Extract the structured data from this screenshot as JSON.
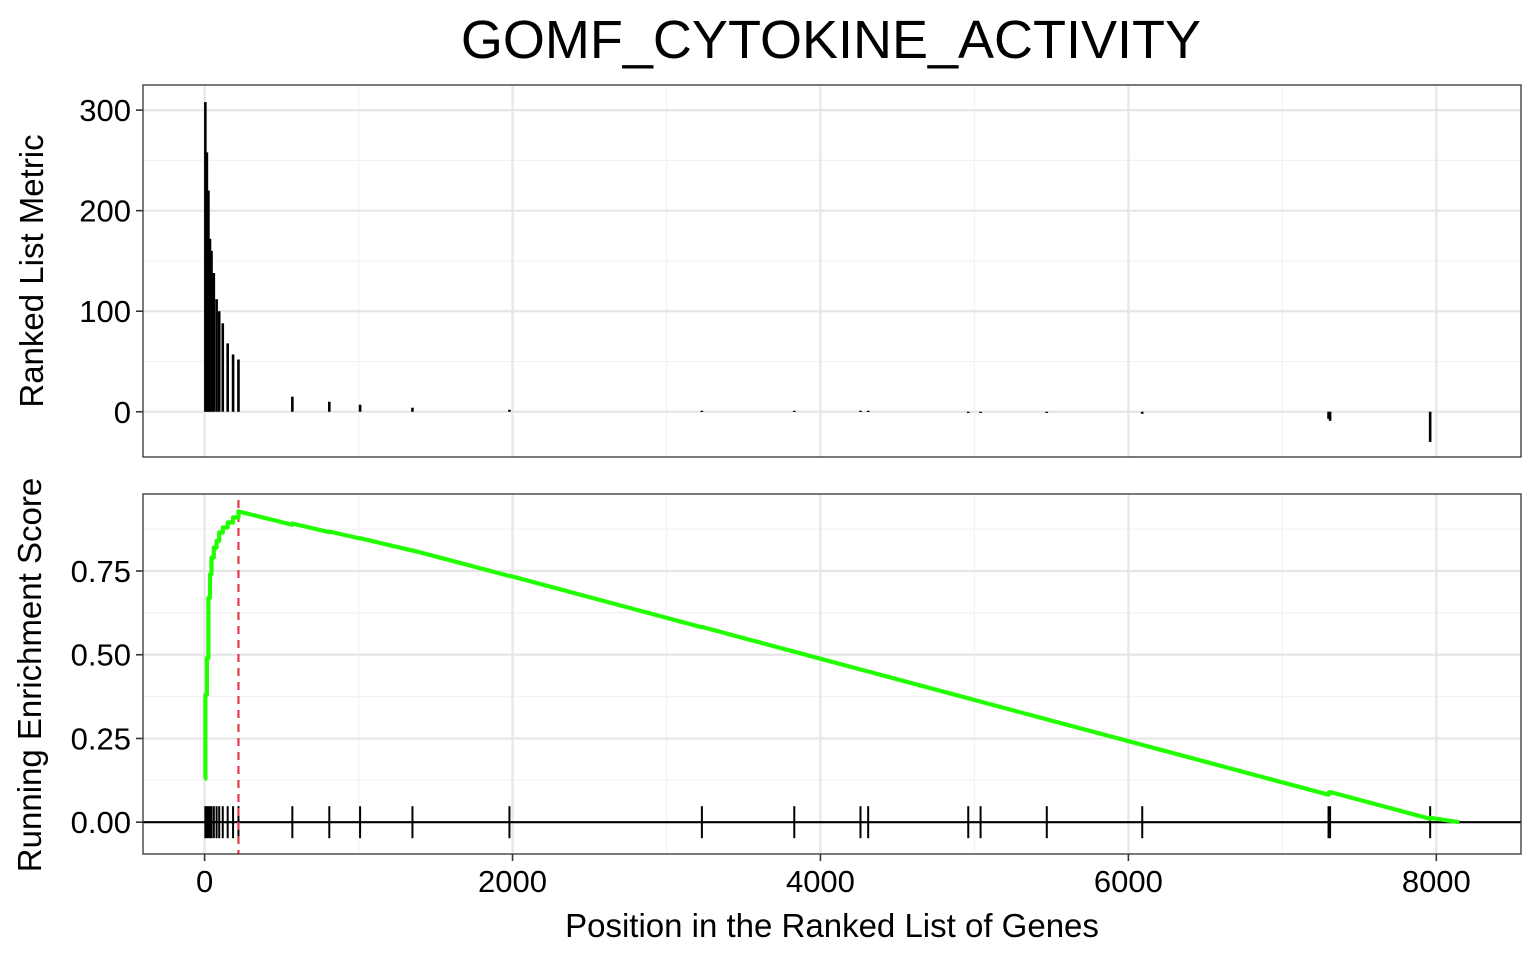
{
  "chart_data": {
    "type": "line",
    "title": "GOMF_CYTOKINE_ACTIVITY",
    "xlabel": "Position in the Ranked List of Genes",
    "xlim": [
      -400,
      8550
    ],
    "x_ticks": [
      0,
      2000,
      4000,
      6000,
      8000
    ],
    "x_tick_labels": [
      "0",
      "2000",
      "4000",
      "6000",
      "8000"
    ],
    "panels": [
      {
        "name": "ranked-metric",
        "type": "bar",
        "ylabel": "Ranked List Metric",
        "ylim": [
          -45,
          325
        ],
        "y_ticks": [
          0,
          100,
          200,
          300
        ],
        "y_tick_labels": [
          "0",
          "100",
          "200",
          "300"
        ],
        "x": [
          5,
          15,
          25,
          35,
          45,
          60,
          78,
          95,
          118,
          150,
          185,
          220,
          570,
          810,
          1010,
          1350,
          1980,
          3230,
          3830,
          4260,
          4310,
          4960,
          5040,
          5470,
          6090,
          7300,
          7310,
          7960
        ],
        "values": [
          308,
          258,
          220,
          172,
          160,
          138,
          112,
          100,
          88,
          68,
          57,
          52,
          15,
          10,
          7,
          4,
          2,
          1,
          1,
          1,
          1,
          -1,
          -1,
          -1,
          -2,
          -7,
          -9,
          -30
        ]
      },
      {
        "name": "running-enrichment-score",
        "type": "line",
        "ylabel": "Running Enrichment Score",
        "ylim": [
          -0.095,
          0.98
        ],
        "y_ticks": [
          0.0,
          0.25,
          0.5,
          0.75
        ],
        "y_tick_labels": [
          "0.00",
          "0.25",
          "0.50",
          "0.75"
        ],
        "line_color": "#22ff00",
        "series": [
          {
            "x": [
              0,
              5,
              5,
              15,
              15,
              25,
              25,
              35,
              35,
              45,
              45,
              60,
              60,
              78,
              78,
              95,
              95,
              118,
              118,
              150,
              150,
              185,
              185,
              220,
              220,
              570,
              570,
              810,
              810,
              1010,
              1010,
              1350,
              1350,
              1980,
              1980,
              3230,
              3230,
              3830,
              3830,
              4260,
              4260,
              4310,
              4310,
              4960,
              4960,
              5040,
              5040,
              5470,
              5470,
              6090,
              6090,
              7300,
              7300,
              7310,
              7310,
              7960,
              7960,
              8150
            ],
            "y": [
              0.13,
              0.13,
              0.38,
              0.38,
              0.49,
              0.49,
              0.67,
              0.67,
              0.74,
              0.74,
              0.79,
              0.79,
              0.82,
              0.82,
              0.84,
              0.84,
              0.865,
              0.865,
              0.88,
              0.88,
              0.895,
              0.895,
              0.91,
              0.91,
              0.928,
              0.888,
              0.892,
              0.866,
              0.868,
              0.847,
              0.848,
              0.811,
              0.812,
              0.735,
              0.736,
              0.582,
              0.583,
              0.509,
              0.509,
              0.456,
              0.456,
              0.45,
              0.45,
              0.37,
              0.37,
              0.36,
              0.36,
              0.307,
              0.307,
              0.231,
              0.231,
              0.082,
              0.088,
              0.087,
              0.09,
              0.01,
              0.013,
              0.0
            ]
          }
        ],
        "max_es_position": 220,
        "max_es_line_color": "#e03e4a",
        "hit_positions": [
          5,
          15,
          25,
          35,
          45,
          60,
          78,
          95,
          118,
          150,
          185,
          220,
          570,
          810,
          1010,
          1350,
          1980,
          3230,
          3830,
          4260,
          4310,
          4960,
          5040,
          5470,
          6090,
          7300,
          7310,
          7960
        ]
      }
    ]
  }
}
